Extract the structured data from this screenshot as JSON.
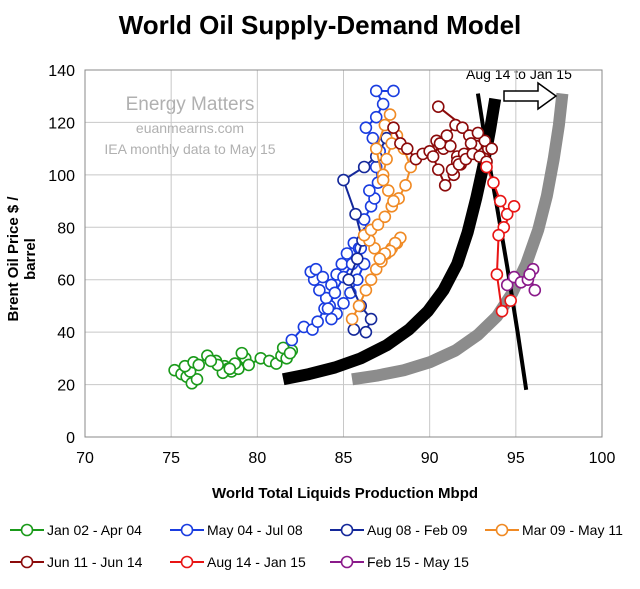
{
  "chart_data": {
    "type": "scatter",
    "title": "World Oil Supply-Demand Model",
    "xlabel": "World Total Liquids Production Mbpd",
    "ylabel": "Brent Oil Price $ / barrel",
    "xlim": [
      70,
      100
    ],
    "ylim": [
      0,
      140
    ],
    "xticks": [
      70,
      75,
      80,
      85,
      90,
      95,
      100
    ],
    "yticks": [
      0,
      20,
      40,
      60,
      80,
      100,
      120,
      140
    ],
    "grid": true,
    "legend_position": "bottom",
    "annotations": [
      "Energy Matters",
      "euanmearns.com",
      "IEA monthly data to May 15"
    ],
    "period_label": "Aug 14 to Jan 15",
    "series": [
      {
        "name": "Jan 02 - Apr 04",
        "color": "#1a9a1a",
        "x": [
          75.2,
          75.6,
          75.9,
          76.2,
          76.5,
          76.1,
          75.8,
          76.3,
          76.6,
          77.1,
          77.6,
          78.1,
          78.5,
          78.9,
          79.3,
          79.1,
          78.7,
          78.3,
          78.0,
          77.7,
          77.3,
          78.4,
          79.5,
          80.2,
          80.7,
          81.1,
          81.4,
          81.7,
          82.0,
          81.5,
          81.9
        ],
        "y": [
          25.5,
          24,
          23,
          20.5,
          22,
          25,
          27,
          28.5,
          27.5,
          31,
          29,
          27,
          25,
          26,
          30,
          32,
          28,
          26,
          24.5,
          27.5,
          29,
          26,
          27.5,
          30,
          29,
          28,
          31,
          30,
          33,
          34,
          32
        ]
      },
      {
        "name": "May 04 - Jul 08",
        "color": "#1a3de0",
        "x": [
          82.0,
          82.7,
          83.2,
          83.5,
          83.9,
          84.2,
          84.0,
          83.6,
          83.3,
          83.1,
          83.4,
          83.8,
          84.3,
          84.6,
          84.9,
          85.2,
          85.6,
          85.9,
          86.2,
          85.8,
          85.4,
          85.0,
          84.6,
          84.3,
          84.1,
          84.5,
          85.0,
          85.5,
          86.0,
          86.4,
          86.2,
          86.6,
          86.8,
          86.5,
          87.0,
          86.9,
          87.1,
          86.7,
          86.3,
          86.9,
          87.3,
          86.9,
          87.9
        ],
        "y": [
          37,
          42,
          41,
          44,
          49,
          50,
          53,
          56,
          60,
          63,
          64,
          61,
          58,
          62,
          66,
          70,
          74,
          72,
          66,
          60,
          55,
          51,
          47,
          45,
          49,
          55,
          61,
          66,
          72,
          78,
          83,
          88,
          91,
          94,
          97,
          103,
          109,
          114,
          118,
          122,
          127,
          132,
          132
        ]
      },
      {
        "name": "Aug 08 - Feb 09",
        "color": "#14289a",
        "x": [
          87.5,
          86.9,
          86.2,
          85.0,
          85.7,
          86.1,
          85.8,
          85.3,
          86.0,
          86.6,
          86.3,
          85.6
        ],
        "y": [
          114,
          107,
          103,
          98,
          85,
          75,
          68,
          60,
          50,
          45,
          40,
          41
        ]
      },
      {
        "name": "Mar 09 - May 11",
        "color": "#f08a24",
        "x": [
          85.5,
          85.9,
          86.3,
          86.6,
          86.9,
          87.2,
          87.5,
          87.8,
          88.1,
          88.3,
          88.0,
          87.7,
          87.4,
          87.1,
          86.8,
          86.5,
          86.2,
          86.6,
          87.0,
          87.4,
          87.8,
          88.2,
          88.6,
          88.9,
          88.5,
          88.1,
          87.8,
          87.5,
          87.3,
          87.6,
          87.9,
          87.3,
          86.9,
          87.4,
          87.7
        ],
        "y": [
          45,
          50,
          56,
          60,
          64,
          67,
          70,
          72,
          74,
          76,
          74,
          71,
          70,
          68,
          72,
          75,
          77,
          79,
          81,
          84,
          88,
          91,
          96,
          103,
          110,
          115,
          112,
          106,
          100,
          94,
          90,
          98,
          110,
          119,
          123
        ]
      },
      {
        "name": "Jun 11 - Jun 14",
        "color": "#8b0a0a",
        "x": [
          87.9,
          88.3,
          88.7,
          89.2,
          89.6,
          90.0,
          90.4,
          90.8,
          91.2,
          91.6,
          91.8,
          91.4,
          90.9,
          90.5,
          90.2,
          90.6,
          91.0,
          91.5,
          91.9,
          92.3,
          92.7,
          93.1,
          93.4,
          93.2,
          92.8,
          92.4,
          92.0,
          91.6,
          91.3,
          91.7,
          92.1,
          92.5,
          92.9,
          93.3,
          93.6,
          90.5
        ],
        "y": [
          118,
          112,
          110,
          106,
          108,
          109,
          113,
          110,
          111,
          107,
          104,
          100,
          96,
          102,
          107,
          112,
          115,
          119,
          118,
          115,
          111,
          108,
          110,
          113,
          116,
          112,
          108,
          105,
          102,
          104,
          106,
          108,
          107,
          105,
          110,
          126
        ]
      },
      {
        "name": "Aug 14 - Jan 15",
        "color": "#e81414",
        "x": [
          93.3,
          93.7,
          94.1,
          94.5,
          94.9,
          94.3,
          94.0,
          93.9,
          94.2,
          94.7
        ],
        "y": [
          103,
          97,
          90,
          85,
          88,
          80,
          77,
          62,
          48,
          52
        ]
      },
      {
        "name": "Feb 15 - May 15",
        "color": "#8a1a8a",
        "x": [
          94.5,
          94.9,
          95.3,
          95.7,
          96.0,
          95.8,
          96.1
        ],
        "y": [
          58,
          61,
          59,
          60,
          64,
          62,
          56
        ]
      }
    ],
    "curves": [
      {
        "kind": "supply",
        "color": "#000000",
        "x": [
          81.5,
          83.0,
          84.5,
          86.0,
          87.5,
          88.8,
          89.9,
          90.8,
          91.6,
          92.2,
          92.7,
          93.1,
          93.5,
          93.8
        ],
        "y": [
          22,
          24,
          26.5,
          30,
          35,
          41,
          48,
          56,
          66,
          78,
          91,
          103,
          117,
          129
        ]
      },
      {
        "kind": "supply",
        "color": "#8c8c8c",
        "x": [
          85.5,
          87.0,
          88.5,
          90.0,
          91.5,
          92.8,
          93.9,
          94.8,
          95.6,
          96.3,
          96.8,
          97.2,
          97.5,
          97.7
        ],
        "y": [
          22,
          23.5,
          25.5,
          28.5,
          33,
          39,
          46,
          55,
          66,
          79,
          92,
          106,
          119,
          131
        ]
      },
      {
        "kind": "demand",
        "color": "#000000",
        "x": [
          92.8,
          93.3,
          93.9,
          94.5,
          95.1,
          95.6
        ],
        "y": [
          131,
          110,
          88,
          65,
          40,
          18
        ]
      }
    ]
  }
}
